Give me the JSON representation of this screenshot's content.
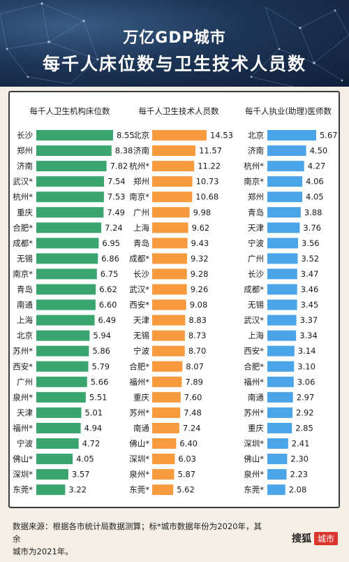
{
  "header": {
    "title_line1": "万亿GDP城市",
    "title_line2": "每千人床位数与卫生技术人员数"
  },
  "colors": {
    "green": "#3aa56e",
    "orange": "#f79a3e",
    "blue": "#4ba3e8"
  },
  "chart_data": [
    {
      "type": "bar",
      "orientation": "horizontal",
      "title": "每千人卫生机构床位数",
      "categories": [
        "长沙",
        "郑州",
        "济南",
        "武汉*",
        "杭州*",
        "重庆",
        "合肥*",
        "成都*",
        "无锡",
        "南京*",
        "青岛",
        "南通",
        "上海",
        "北京",
        "苏州*",
        "西安*",
        "广州",
        "泉州*",
        "天津",
        "福州*",
        "宁波",
        "佛山*",
        "深圳*",
        "东莞*"
      ],
      "values": [
        8.55,
        8.38,
        7.82,
        7.54,
        7.53,
        7.49,
        7.24,
        6.95,
        6.86,
        6.75,
        6.62,
        6.6,
        6.49,
        5.94,
        5.86,
        5.79,
        5.66,
        5.51,
        5.01,
        4.94,
        4.72,
        4.05,
        3.57,
        3.22
      ],
      "labels": [
        "8.55",
        "8.38",
        "7.82",
        "7.54",
        "7.53",
        "7.49",
        "7.24",
        "6.95",
        "6.86",
        "6.75",
        "6.62",
        "6.60",
        "6.49",
        "5.94",
        "5.86",
        "5.79",
        "5.66",
        "5.51",
        "5.01",
        "4.94",
        "4.72",
        "4.05",
        "3.57",
        "3.22"
      ],
      "color": "#3aa56e"
    },
    {
      "type": "bar",
      "orientation": "horizontal",
      "title": "每千人卫生技术人员数",
      "categories": [
        "北京",
        "济南",
        "杭州*",
        "郑州",
        "南京*",
        "广州",
        "上海",
        "青岛",
        "成都*",
        "长沙",
        "武汉*",
        "西安*",
        "天津",
        "无锡",
        "宁波",
        "合肥*",
        "福州*",
        "重庆",
        "苏州*",
        "南通",
        "佛山*",
        "深圳*",
        "泉州*",
        "东莞*"
      ],
      "values": [
        14.53,
        11.57,
        11.22,
        10.73,
        10.68,
        9.98,
        9.62,
        9.43,
        9.32,
        9.28,
        9.26,
        9.08,
        8.83,
        8.73,
        8.7,
        8.07,
        7.89,
        7.6,
        7.48,
        7.24,
        6.4,
        6.03,
        5.87,
        5.62
      ],
      "labels": [
        "14.53",
        "11.57",
        "11.22",
        "10.73",
        "10.68",
        "9.98",
        "9.62",
        "9.43",
        "9.32",
        "9.28",
        "9.26",
        "9.08",
        "8.83",
        "8.73",
        "8.70",
        "8.07",
        "7.89",
        "7.60",
        "7.48",
        "7.24",
        "6.40",
        "6.03",
        "5.87",
        "5.62"
      ],
      "color": "#f79a3e"
    },
    {
      "type": "bar",
      "orientation": "horizontal",
      "title": "每千人执业(助理)医师数",
      "categories": [
        "北京",
        "济南",
        "杭州*",
        "南京*",
        "郑州",
        "青岛",
        "天津",
        "宁波",
        "广州",
        "长沙",
        "成都*",
        "无锡",
        "武汉*",
        "上海",
        "西安*",
        "合肥*",
        "福州*",
        "南通",
        "苏州*",
        "重庆",
        "深圳*",
        "佛山*",
        "泉州*",
        "东莞*"
      ],
      "values": [
        5.67,
        4.5,
        4.27,
        4.06,
        4.05,
        3.88,
        3.76,
        3.56,
        3.52,
        3.47,
        3.46,
        3.45,
        3.37,
        3.34,
        3.14,
        3.1,
        3.06,
        2.97,
        2.92,
        2.85,
        2.41,
        2.3,
        2.23,
        2.08
      ],
      "labels": [
        "5.67",
        "4.50",
        "4.27",
        "4.06",
        "4.05",
        "3.88",
        "3.76",
        "3.56",
        "3.52",
        "3.47",
        "3.46",
        "3.45",
        "3.37",
        "3.34",
        "3.14",
        "3.10",
        "3.06",
        "2.97",
        "2.92",
        "2.85",
        "2.41",
        "2.30",
        "2.23",
        "2.08"
      ],
      "color": "#4ba3e8"
    }
  ],
  "footer": {
    "line1": "数据来源：根据各市统计局数据测算；标*城市数据年份为2020年，其余",
    "line2": "城市为2021年。"
  },
  "brand": {
    "name": "搜狐",
    "tag": "城市"
  }
}
